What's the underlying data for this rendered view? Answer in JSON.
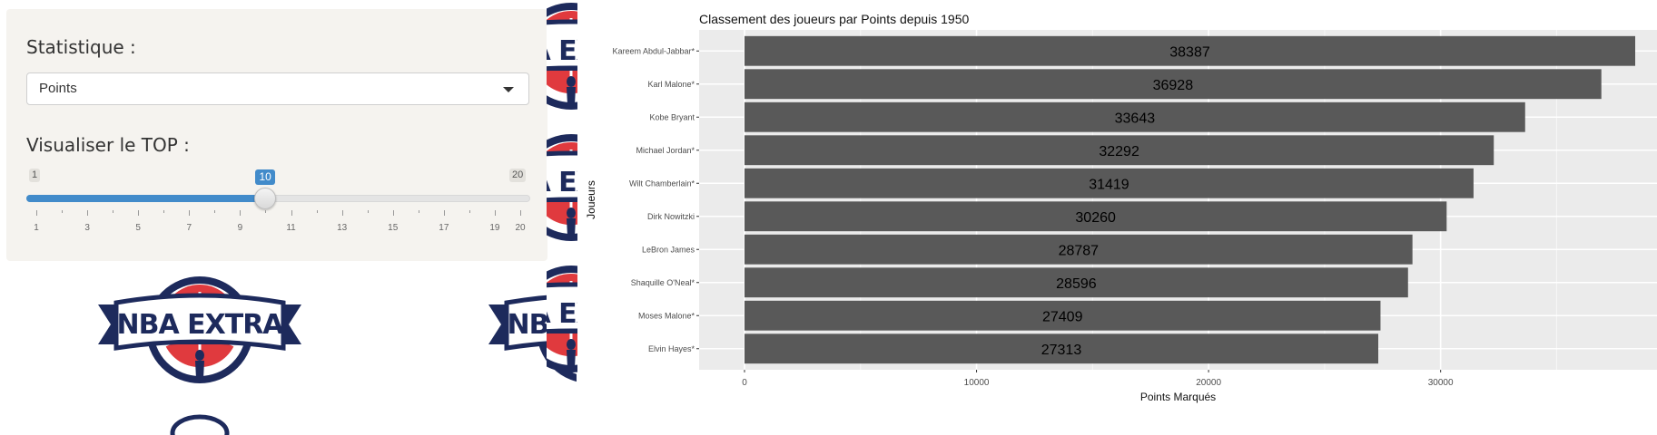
{
  "controls": {
    "stat_label": "Statistique :",
    "stat_selected": "Points",
    "top_label": "Visualiser le TOP :",
    "slider": {
      "min": 1,
      "max": 20,
      "value": 10,
      "ticks": [
        "1",
        "3",
        "5",
        "7",
        "9",
        "11",
        "13",
        "15",
        "17",
        "19",
        "20"
      ]
    }
  },
  "logo": {
    "text": "NBA EXTRA",
    "colors": {
      "navy": "#1d2a5c",
      "red": "#e03a3e"
    }
  },
  "chart_data": {
    "type": "bar",
    "orientation": "horizontal",
    "title": "Classement des joueurs par Points depuis 1950",
    "xlabel": "Points Marqués",
    "ylabel": "Joueurs",
    "categories": [
      "Kareem Abdul-Jabbar*",
      "Karl Malone*",
      "Kobe Bryant",
      "Michael Jordan*",
      "Wilt Chamberlain*",
      "Dirk Nowitzki",
      "LeBron James",
      "Shaquille O'Neal*",
      "Moses Malone*",
      "Elvin Hayes*"
    ],
    "values": [
      38387,
      36928,
      33643,
      32292,
      31419,
      30260,
      28787,
      28596,
      27409,
      27313
    ],
    "xticks": [
      0,
      10000,
      20000,
      30000
    ],
    "xlim": [
      0,
      38387
    ],
    "bar_color": "#595959",
    "panel_color": "#ebebeb",
    "grid": true,
    "legend": "none"
  }
}
